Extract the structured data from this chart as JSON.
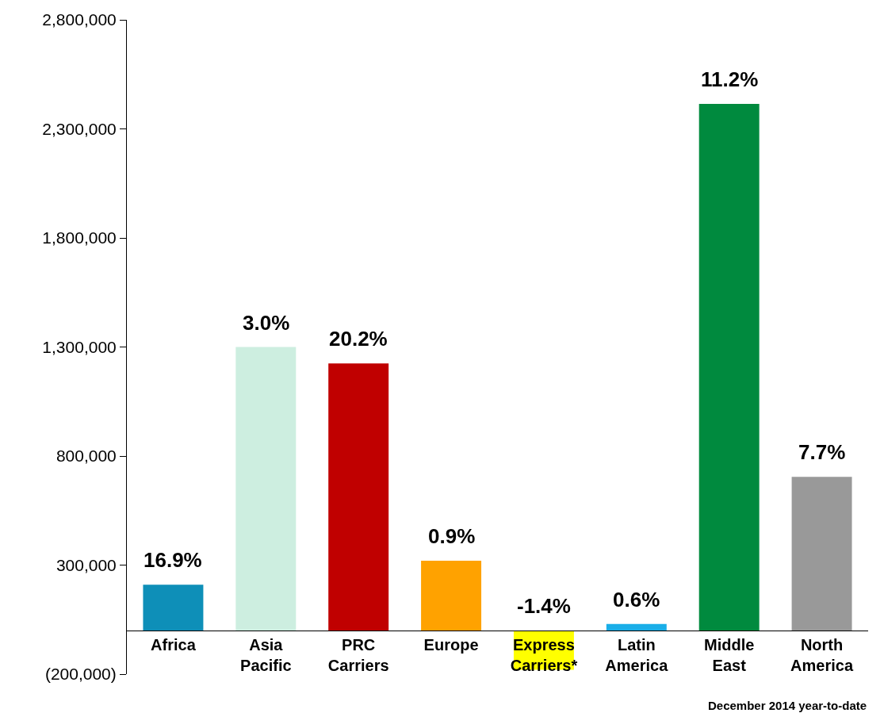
{
  "chart_data": {
    "type": "bar",
    "categories": [
      "Africa",
      "Asia Pacific",
      "PRC Carriers",
      "Europe",
      "Express Carriers*",
      "Latin America",
      "Middle East",
      "North America"
    ],
    "values": [
      210000,
      1300000,
      1225000,
      320000,
      -180000,
      30000,
      2415000,
      705000
    ],
    "colors": [
      "#0e8fb8",
      "#cdeee0",
      "#c00000",
      "#ffa200",
      "#ffff00",
      "#1aaee8",
      "#008a3e",
      "#999999"
    ],
    "ylim": [
      -200000,
      2800000
    ],
    "yticks": [
      {
        "value": -200000,
        "label": "(200,000)"
      },
      {
        "value": 300000,
        "label": "300,000"
      },
      {
        "value": 800000,
        "label": "800,000"
      },
      {
        "value": 1300000,
        "label": "1,300,000"
      },
      {
        "value": 1800000,
        "label": "1,800,000"
      },
      {
        "value": 2300000,
        "label": "2,300,000"
      },
      {
        "value": 2800000,
        "label": "2,800,000"
      }
    ],
    "annotations": [
      {
        "text": "16.9%",
        "x": "Africa",
        "y": 210000
      },
      {
        "text": "3.0%",
        "x": "Asia Pacific",
        "y": 1300000
      },
      {
        "text": "20.2%",
        "x": "PRC Carriers",
        "y": 1225000
      },
      {
        "text": "0.9%",
        "x": "Europe",
        "y": 320000
      },
      {
        "text": "-1.4%",
        "x": "Express Carriers*",
        "y": 0
      },
      {
        "text": "0.6%",
        "x": "Latin America",
        "y": 30000
      },
      {
        "text": "11.2%",
        "x": "Middle East",
        "y": 2415000
      },
      {
        "text": "7.7%",
        "x": "North America",
        "y": 705000
      },
      "December 2014 year-to-date"
    ],
    "legend": false
  }
}
